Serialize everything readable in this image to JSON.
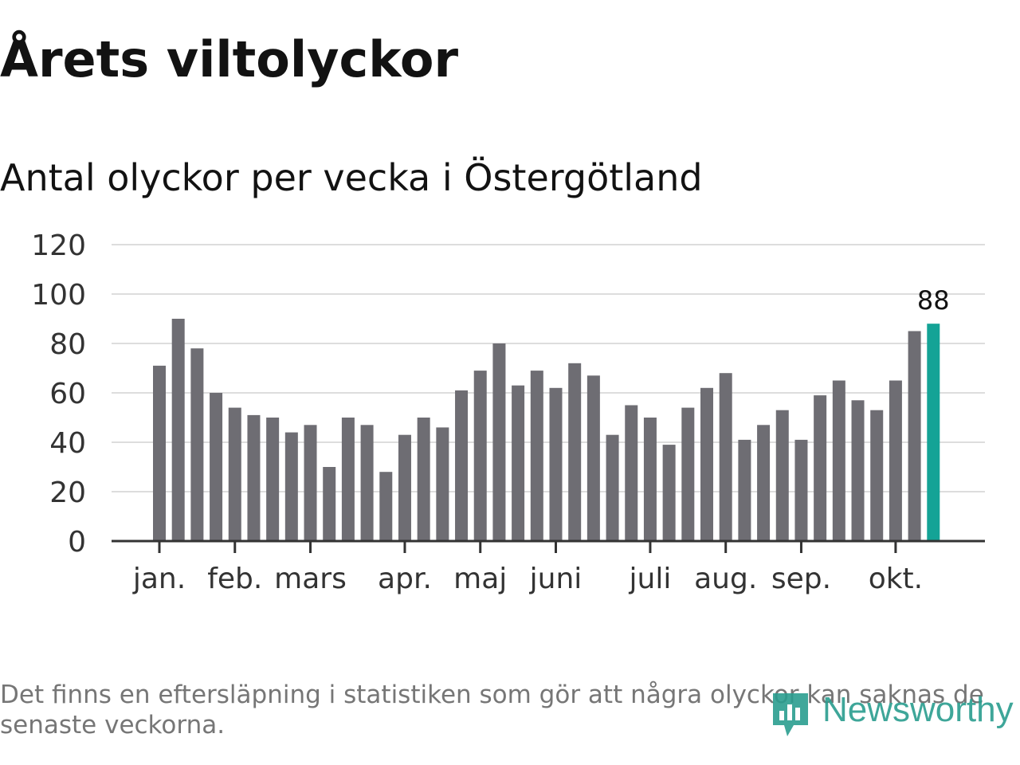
{
  "title": "Årets viltolyckor",
  "subtitle": "Antal olyckor per vecka i Östergötland",
  "footnote": "Det finns en eftersläpning i statistiken som gör att några olyckor kan saknas de senaste veckorna.",
  "brand": "Newsworthy",
  "colors": {
    "bar": "#6e6d73",
    "highlight": "#14a396",
    "grid": "#dddddd",
    "axis": "#333333"
  },
  "chart_data": {
    "type": "bar",
    "title": "Antal olyckor per vecka i Östergötland",
    "xlabel": "",
    "ylabel": "",
    "ylim": [
      0,
      120
    ],
    "yticks": [
      "0",
      "20",
      "40",
      "60",
      "80",
      "100",
      "120"
    ],
    "month_labels": [
      {
        "label": "jan.",
        "week": 1
      },
      {
        "label": "feb.",
        "week": 5
      },
      {
        "label": "mars",
        "week": 9
      },
      {
        "label": "apr.",
        "week": 14
      },
      {
        "label": "maj",
        "week": 18
      },
      {
        "label": "juni",
        "week": 22
      },
      {
        "label": "juli",
        "week": 27
      },
      {
        "label": "aug.",
        "week": 31
      },
      {
        "label": "sep.",
        "week": 35
      },
      {
        "label": "okt.",
        "week": 40
      }
    ],
    "weeks": [
      1,
      2,
      3,
      4,
      5,
      6,
      7,
      8,
      9,
      10,
      11,
      12,
      13,
      14,
      15,
      16,
      17,
      18,
      19,
      20,
      21,
      22,
      23,
      24,
      25,
      26,
      27,
      28,
      29,
      30,
      31,
      32,
      33,
      34,
      35,
      36,
      37,
      38,
      39,
      40,
      41,
      42
    ],
    "values": [
      71,
      90,
      78,
      60,
      54,
      51,
      50,
      44,
      47,
      30,
      50,
      47,
      28,
      43,
      50,
      46,
      61,
      69,
      80,
      63,
      69,
      62,
      72,
      67,
      43,
      55,
      50,
      39,
      54,
      62,
      68,
      41,
      47,
      53,
      41,
      59,
      65,
      57,
      53,
      65,
      85,
      88
    ],
    "highlight_index": 41,
    "data_labels": [
      {
        "index": 41,
        "text": "88"
      }
    ]
  }
}
